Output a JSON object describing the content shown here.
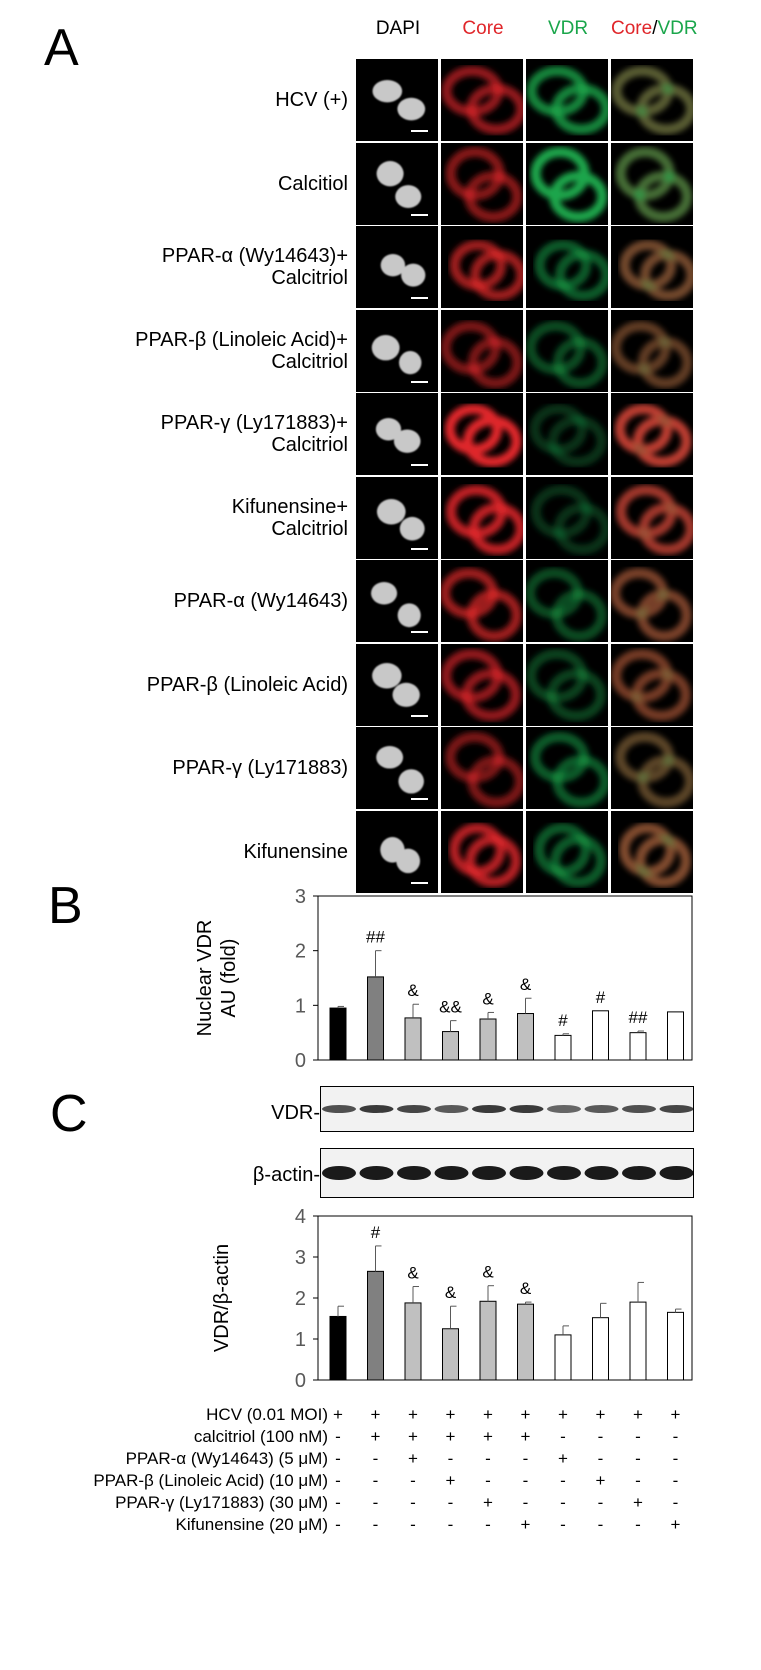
{
  "panels": {
    "a": "A",
    "b": "B",
    "c": "C"
  },
  "columns": [
    {
      "parts": [
        {
          "text": "DAPI",
          "color": "#000000"
        }
      ]
    },
    {
      "parts": [
        {
          "text": "Core",
          "color": "#e0262a"
        }
      ]
    },
    {
      "parts": [
        {
          "text": "VDR",
          "color": "#1aa64b"
        }
      ]
    },
    {
      "parts": [
        {
          "text": "Core",
          "color": "#e0262a"
        },
        {
          "text": "/",
          "color": "#000000"
        },
        {
          "text": "VDR",
          "color": "#1aa64b"
        }
      ]
    }
  ],
  "rows": [
    {
      "l1": "HCV (+)",
      "l2": ""
    },
    {
      "l1": "Calcitiol",
      "l2": ""
    },
    {
      "l1": "PPAR-α (Wy14643)+",
      "l2": "Calcitriol"
    },
    {
      "l1": "PPAR-β (Linoleic Acid)+",
      "l2": "Calcitriol"
    },
    {
      "l1": "PPAR-γ (Ly171883)+",
      "l2": "Calcitriol"
    },
    {
      "l1": "Kifunensine+",
      "l2": "Calcitriol"
    },
    {
      "l1": "PPAR-α (Wy14643)",
      "l2": ""
    },
    {
      "l1": "PPAR-β (Linoleic Acid)",
      "l2": ""
    },
    {
      "l1": "PPAR-γ (Ly171883)",
      "l2": ""
    },
    {
      "l1": "Kifunensine",
      "l2": ""
    }
  ],
  "intensity": {
    "core": [
      0.65,
      0.6,
      0.7,
      0.55,
      1.0,
      0.85,
      0.7,
      0.65,
      0.55,
      0.8
    ],
    "vdr": [
      0.8,
      1.0,
      0.55,
      0.45,
      0.3,
      0.3,
      0.45,
      0.4,
      0.55,
      0.55
    ]
  },
  "colors": {
    "black_bar": "#000000",
    "dark_grey_bar": "#808080",
    "light_grey_bar": "#c0c0c0",
    "open_bar": "#ffffff",
    "core": "#e0262a",
    "vdr": "#1aa64b"
  },
  "blots": {
    "vdr_label": "VDR-",
    "actin_label": "β-actin-",
    "vdr_band_strength": [
      0.75,
      0.85,
      0.8,
      0.7,
      0.85,
      0.85,
      0.65,
      0.7,
      0.75,
      0.8
    ],
    "actin_band_strength": [
      1,
      1,
      1,
      1,
      1,
      1,
      1,
      1,
      1,
      1
    ]
  },
  "chart_data": [
    {
      "type": "bar",
      "ylabel": "Nuclear VDR\nAU (fold)",
      "ylim": [
        0,
        3
      ],
      "yticks": [
        "0",
        "1",
        "2",
        "3"
      ],
      "values": [
        0.95,
        1.52,
        0.77,
        0.52,
        0.75,
        0.85,
        0.45,
        0.9,
        0.5,
        0.88
      ],
      "errors": [
        0.03,
        0.48,
        0.25,
        0.2,
        0.12,
        0.28,
        0.03,
        0.0,
        0.03,
        0.0
      ],
      "fills": [
        "black",
        "dark_grey",
        "light_grey",
        "light_grey",
        "light_grey",
        "light_grey",
        "open",
        "open",
        "open",
        "open"
      ],
      "annotations": [
        "",
        "##",
        "&",
        "&&",
        "&",
        "&",
        "#",
        "#",
        "##",
        ""
      ]
    },
    {
      "type": "bar",
      "ylabel": "VDR/β-actin",
      "ylim": [
        0,
        4
      ],
      "yticks": [
        "0",
        "1",
        "2",
        "3",
        "4"
      ],
      "values": [
        1.55,
        2.65,
        1.88,
        1.25,
        1.92,
        1.85,
        1.1,
        1.52,
        1.9,
        1.65
      ],
      "errors": [
        0.25,
        0.62,
        0.4,
        0.55,
        0.38,
        0.05,
        0.22,
        0.35,
        0.48,
        0.08
      ],
      "fills": [
        "black",
        "dark_grey",
        "light_grey",
        "light_grey",
        "light_grey",
        "light_grey",
        "open",
        "open",
        "open",
        "open"
      ],
      "annotations": [
        "",
        "#",
        "&",
        "&",
        "&",
        "&",
        "",
        "",
        "",
        ""
      ]
    }
  ],
  "treatment_table": [
    {
      "label": "HCV (0.01 MOI)",
      "symbols": [
        "+",
        "+",
        "+",
        "+",
        "+",
        "+",
        "+",
        "+",
        "+",
        "+"
      ]
    },
    {
      "label": "calcitriol (100 nM)",
      "symbols": [
        "-",
        "+",
        "+",
        "+",
        "+",
        "+",
        "-",
        "-",
        "-",
        "-"
      ]
    },
    {
      "label": "PPAR-α (Wy14643) (5 μM)",
      "symbols": [
        "-",
        "-",
        "+",
        "-",
        "-",
        "-",
        "+",
        "-",
        "-",
        "-"
      ]
    },
    {
      "label": "PPAR-β (Linoleic Acid) (10 μM)",
      "symbols": [
        "-",
        "-",
        "-",
        "+",
        "-",
        "-",
        "-",
        "+",
        "-",
        "-"
      ]
    },
    {
      "label": "PPAR-γ (Ly171883) (30 μM)",
      "symbols": [
        "-",
        "-",
        "-",
        "-",
        "+",
        "-",
        "-",
        "-",
        "+",
        "-"
      ]
    },
    {
      "label": "Kifunensine (20 μM)",
      "symbols": [
        "-",
        "-",
        "-",
        "-",
        "-",
        "+",
        "-",
        "-",
        "-",
        "+"
      ]
    }
  ]
}
